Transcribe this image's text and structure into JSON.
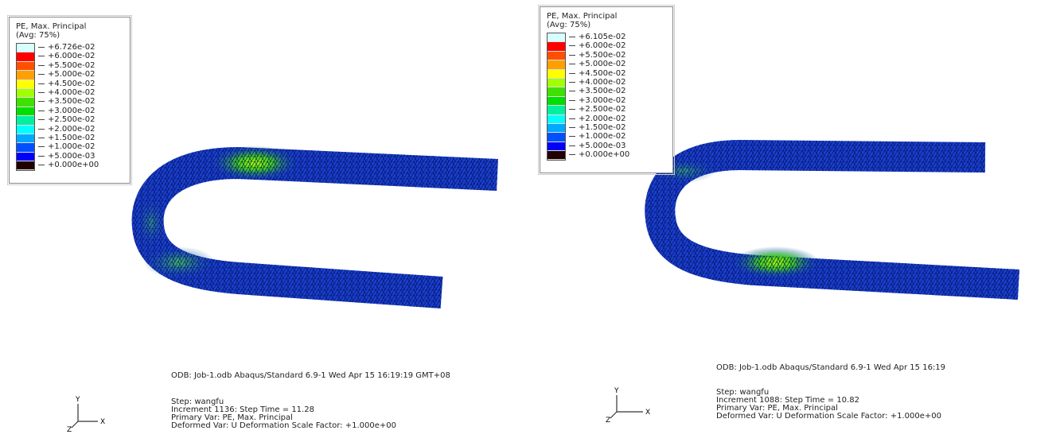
{
  "colors": [
    "#d8ffff",
    "#ff0000",
    "#ff5000",
    "#ffa000",
    "#ffff00",
    "#a0ff00",
    "#40e000",
    "#00e000",
    "#00f0a0",
    "#00ffff",
    "#00a8ff",
    "#0050ff",
    "#0000ff",
    "#200000"
  ],
  "viewports": [
    {
      "legend": {
        "title": "PE, Max. Principal",
        "subtitle": "(Avg: 75%)",
        "labels": [
          "+6.726e-02",
          "+6.000e-02",
          "+5.500e-02",
          "+5.000e-02",
          "+4.500e-02",
          "+4.000e-02",
          "+3.500e-02",
          "+3.000e-02",
          "+2.500e-02",
          "+2.000e-02",
          "+1.500e-02",
          "+1.000e-02",
          "+5.000e-03",
          "+0.000e+00"
        ]
      },
      "odb_line": "ODB: Job-1.odb    Abaqus/Standard 6.9-1    Wed Apr 15 16:19:19 GMT+08",
      "step": "Step: wangfu",
      "increment": "Increment   1136: Step Time =    11.28",
      "primary": "Primary Var: PE, Max. Principal",
      "deformed": "Deformed Var: U   Deformation Scale Factor: +1.000e+00",
      "axes": {
        "x": "X",
        "y": "Y",
        "z": "Z"
      }
    },
    {
      "legend": {
        "title": "PE, Max. Principal",
        "subtitle": "(Avg: 75%)",
        "labels": [
          "+6.105e-02",
          "+6.000e-02",
          "+5.500e-02",
          "+5.000e-02",
          "+4.500e-02",
          "+4.000e-02",
          "+3.500e-02",
          "+3.000e-02",
          "+2.500e-02",
          "+2.000e-02",
          "+1.500e-02",
          "+1.000e-02",
          "+5.000e-03",
          "+0.000e+00"
        ]
      },
      "odb_line": "ODB: Job-1.odb    Abaqus/Standard 6.9-1    Wed Apr 15 16:19",
      "step": "Step: wangfu",
      "increment": "Increment   1088: Step Time =    10.82",
      "primary": "Primary Var: PE, Max. Principal",
      "deformed": "Deformed Var: U   Deformation Scale Factor: +1.000e+00",
      "axes": {
        "x": "X",
        "y": "Y",
        "z": "Z"
      }
    }
  ]
}
